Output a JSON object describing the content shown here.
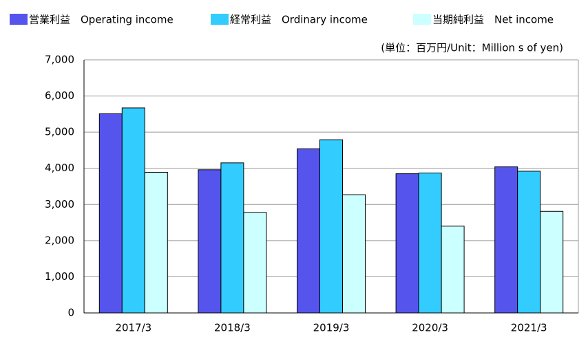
{
  "chart_data": {
    "type": "bar",
    "subtitle": "(単位：百万円/Unit：Million s  of yen)",
    "categories": [
      "2017/3",
      "2018/3",
      "2019/3",
      "2020/3",
      "2021/3"
    ],
    "series": [
      {
        "name": "営業利益　Operating income",
        "color": "#5555ee",
        "values": [
          5510,
          3960,
          4540,
          3850,
          4040
        ]
      },
      {
        "name": "経常利益　Ordinary income",
        "color": "#33ccff",
        "values": [
          5670,
          4150,
          4790,
          3870,
          3920
        ]
      },
      {
        "name": "当期純利益　Net income",
        "color": "#ccffff",
        "values": [
          3890,
          2780,
          3270,
          2400,
          2810
        ]
      }
    ],
    "ylim": [
      0,
      7000
    ],
    "yticks": [
      0,
      {
        "value": 1000,
        "label": "1,000"
      },
      {
        "value": 2000,
        "label": "2,000"
      },
      {
        "value": 3000,
        "label": "3,000"
      },
      {
        "value": 4000,
        "label": "4,000"
      },
      {
        "value": 5000,
        "label": "5,000"
      },
      {
        "value": 6000,
        "label": "6,000"
      },
      {
        "value": 7000,
        "label": "7,000"
      }
    ],
    "grid": true
  }
}
